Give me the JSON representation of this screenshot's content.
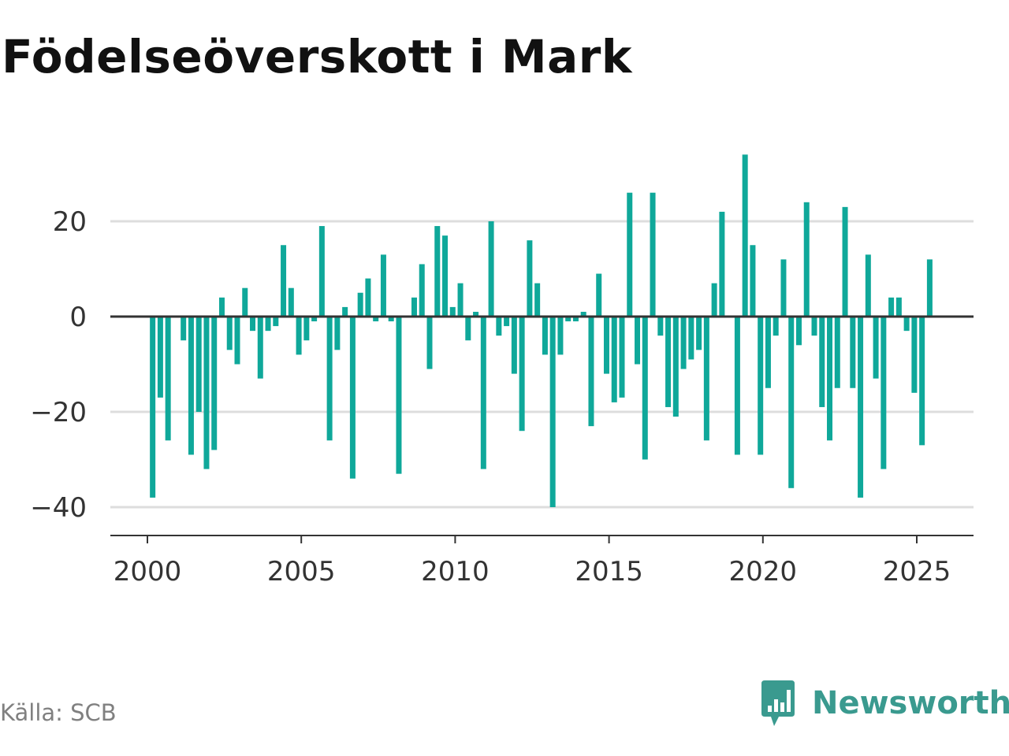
{
  "title": "Födelseöverskott i Mark",
  "source": "Källa: SCB",
  "brand": {
    "name": "Newsworthy",
    "icon": "newsworthy-logo-icon",
    "color": "#3a9a8f"
  },
  "chart_data": {
    "type": "bar",
    "title": "Födelseöverskott i Mark",
    "xlabel": "",
    "ylabel": "",
    "color": "#0fa89a",
    "ylim": [
      -46,
      40
    ],
    "xlim": [
      2000,
      2025.8
    ],
    "grid": true,
    "legend": "none",
    "x_ticks": [
      2000,
      2005,
      2010,
      2015,
      2020,
      2025
    ],
    "x_tick_labels": [
      "2000",
      "2005",
      "2010",
      "2015",
      "2020",
      "2025"
    ],
    "y_ticks": [
      20,
      0,
      -20,
      -40
    ],
    "y_tick_labels": [
      "20",
      "0",
      "−20",
      "−40"
    ],
    "x": [
      2000.17,
      2000.42,
      2000.67,
      2000.92,
      2001.17,
      2001.42,
      2001.67,
      2001.92,
      2002.17,
      2002.42,
      2002.67,
      2002.92,
      2003.17,
      2003.42,
      2003.67,
      2003.92,
      2004.17,
      2004.42,
      2004.67,
      2004.92,
      2005.17,
      2005.42,
      2005.67,
      2005.92,
      2006.17,
      2006.42,
      2006.67,
      2006.92,
      2007.17,
      2007.42,
      2007.67,
      2007.92,
      2008.17,
      2008.42,
      2008.67,
      2008.92,
      2009.17,
      2009.42,
      2009.67,
      2009.92,
      2010.17,
      2010.42,
      2010.67,
      2010.92,
      2011.17,
      2011.42,
      2011.67,
      2011.92,
      2012.17,
      2012.42,
      2012.67,
      2012.92,
      2013.17,
      2013.42,
      2013.67,
      2013.92,
      2014.17,
      2014.42,
      2014.67,
      2014.92,
      2015.17,
      2015.42,
      2015.67,
      2015.92,
      2016.17,
      2016.42,
      2016.67,
      2016.92,
      2017.17,
      2017.42,
      2017.67,
      2017.92,
      2018.17,
      2018.42,
      2018.67,
      2018.92,
      2019.17,
      2019.42,
      2019.67,
      2019.92,
      2020.17,
      2020.42,
      2020.67,
      2020.92,
      2021.17,
      2021.42,
      2021.67,
      2021.92,
      2022.17,
      2022.42,
      2022.67,
      2022.92,
      2023.17,
      2023.42,
      2023.67,
      2023.92,
      2024.17,
      2024.42,
      2024.67,
      2024.92,
      2025.17,
      2025.42
    ],
    "values": [
      -38,
      -17,
      -26,
      0,
      -5,
      -29,
      -20,
      -32,
      -28,
      4,
      -7,
      -10,
      6,
      -3,
      -13,
      -3,
      -2,
      15,
      6,
      -8,
      -5,
      -1,
      19,
      -26,
      -7,
      2,
      -34,
      5,
      8,
      -1,
      13,
      -1,
      -33,
      0,
      4,
      11,
      -11,
      19,
      17,
      2,
      7,
      -5,
      1,
      -32,
      20,
      -4,
      -2,
      -12,
      -24,
      16,
      7,
      -8,
      -40,
      -8,
      -1,
      -1,
      1,
      -23,
      9,
      -12,
      -18,
      -17,
      26,
      -10,
      -30,
      26,
      -4,
      -19,
      -21,
      -11,
      -9,
      -7,
      -26,
      7,
      22,
      0,
      -29,
      34,
      15,
      -29,
      -15,
      -4,
      12,
      -36,
      -6,
      24,
      -4,
      -19,
      -26,
      -15,
      23,
      -15,
      -38,
      13,
      -13,
      -32,
      4,
      4,
      -3,
      -16,
      -27,
      12
    ]
  }
}
